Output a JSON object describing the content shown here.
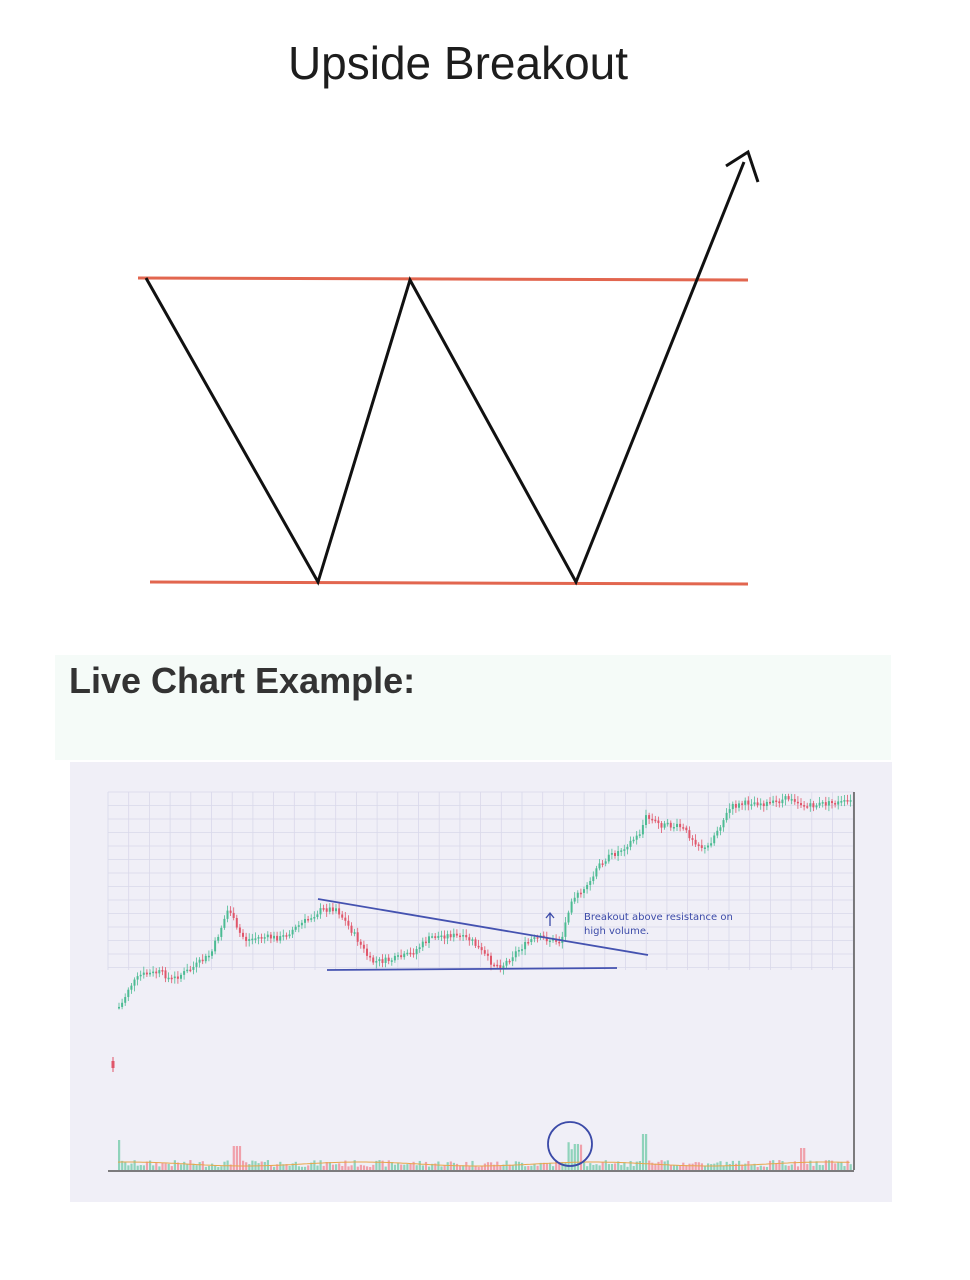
{
  "header": {
    "title": "Upside Breakout"
  },
  "section": {
    "title": "Live Chart Example:"
  },
  "diagram": {
    "colors": {
      "resistance": "#e2664f",
      "support": "#e2664f",
      "price": "#111111"
    }
  },
  "chart": {
    "annotation": {
      "line1": "Breakout above resistance on",
      "line2": "high volume."
    },
    "colors": {
      "up": "#4cbb93",
      "down": "#e0566a",
      "trendline": "#4452b0",
      "grid": "#d9d8ea",
      "volume_up": "#8fd3bb",
      "volume_down": "#f0a0ab",
      "volume_avg": "#e8a64a",
      "axis": "#555555"
    }
  }
}
